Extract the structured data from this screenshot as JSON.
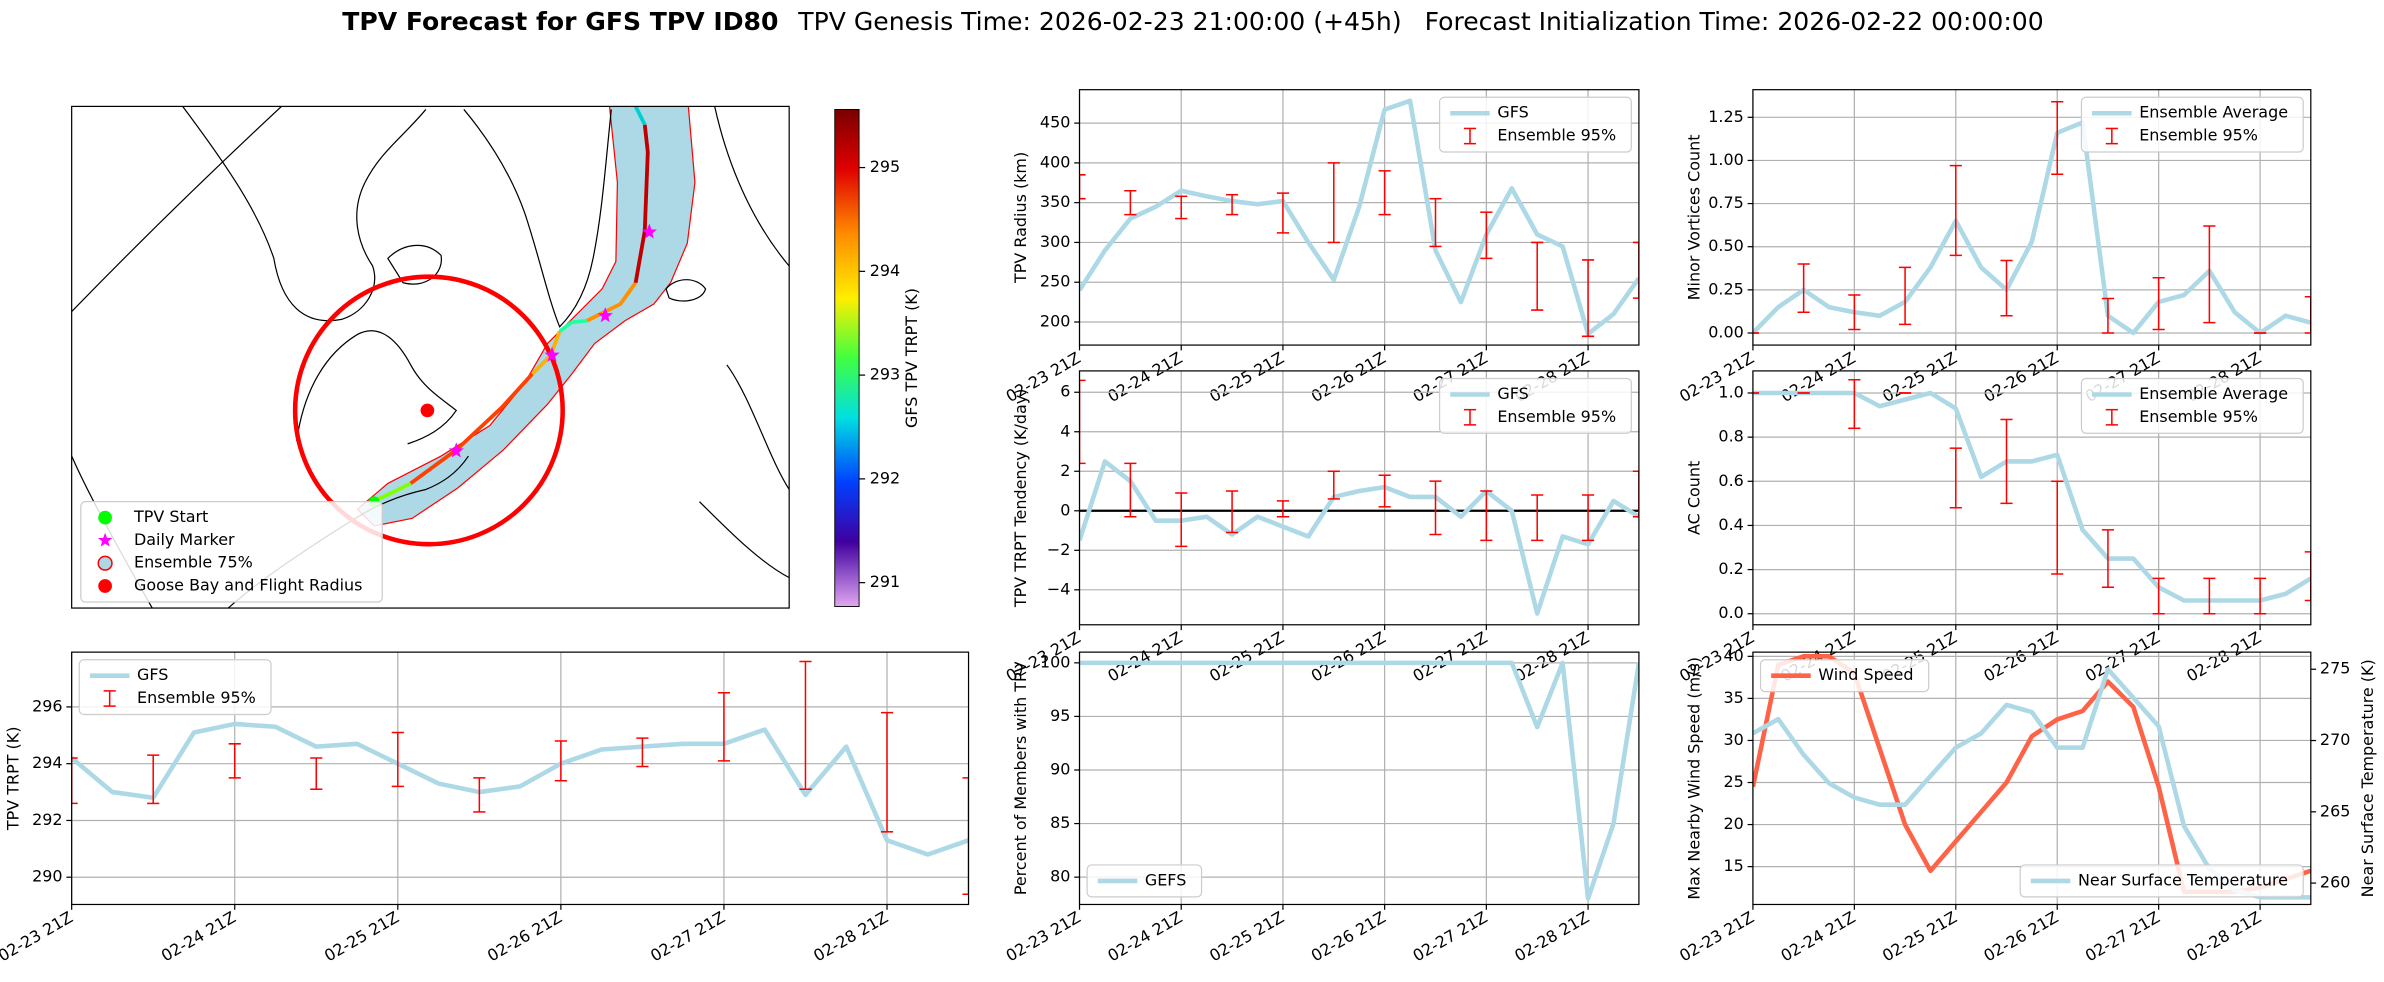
{
  "figure": {
    "title": "TPV Forecast for GFS TPV ID80",
    "genesis": "TPV Genesis Time: 2026-02-23 21:00:00 (+45h)",
    "initialization": "Forecast Initialization Time: 2026-02-22 00:00:00"
  },
  "chart_data": [
    {
      "type": "map",
      "legend": [
        {
          "label": "TPV Start",
          "color": "#00ff00",
          "marker": "circle"
        },
        {
          "label": "Daily Marker",
          "color": "#ff00ff",
          "marker": "star"
        },
        {
          "label": "Ensemble 75%",
          "color": "#add8e6",
          "edge": "#ff0000",
          "marker": "circle"
        },
        {
          "label": "Goose Bay and Flight Radius",
          "color": "#ff0000",
          "marker": "circle"
        }
      ],
      "legend_loc": "lower left",
      "colorbar": {
        "label": "GFS TPV TRPT (K)",
        "lim": [
          290.77,
          295.56
        ],
        "ticks": [
          291,
          292,
          293,
          294,
          295
        ]
      }
    },
    {
      "type": "line",
      "ylabel": "TPV Radius (km)",
      "categories": [
        "02-23 21Z",
        null,
        null,
        null,
        "02-24 21Z",
        null,
        null,
        null,
        "02-25 21Z",
        null,
        null,
        null,
        "02-26 21Z",
        null,
        null,
        null,
        "02-27 21Z",
        null,
        null,
        null,
        "02-28 21Z",
        null,
        null
      ],
      "ylim": [
        171,
        492
      ],
      "yticks": [
        200,
        250,
        300,
        350,
        400,
        450
      ],
      "grid": true,
      "legend": "upper right",
      "series": [
        {
          "name": "GFS",
          "color": "#add8e6",
          "values": [
            240,
            290,
            330,
            345,
            365,
            358,
            352,
            348,
            352,
            300,
            253,
            345,
            467,
            478,
            290,
            225,
            310,
            368,
            310,
            295,
            185,
            210,
            255
          ]
        }
      ],
      "errorbars": {
        "name": "Ensemble 95%",
        "color": "#ff0000",
        "low": [
          355,
          null,
          335,
          null,
          330,
          null,
          335,
          null,
          312,
          null,
          300,
          null,
          335,
          null,
          295,
          null,
          280,
          null,
          215,
          null,
          182,
          null,
          230
        ],
        "high": [
          385,
          null,
          365,
          null,
          358,
          null,
          360,
          null,
          362,
          null,
          400,
          null,
          390,
          null,
          355,
          null,
          338,
          null,
          300,
          null,
          278,
          null,
          300
        ]
      }
    },
    {
      "type": "line",
      "ylabel": "Minor Vortices Count",
      "categories": [
        "02-23 21Z",
        null,
        null,
        null,
        "02-24 21Z",
        null,
        null,
        null,
        "02-25 21Z",
        null,
        null,
        null,
        "02-26 21Z",
        null,
        null,
        null,
        "02-27 21Z",
        null,
        null,
        null,
        "02-28 21Z",
        null,
        null
      ],
      "ylim": [
        -0.07,
        1.41
      ],
      "yticks": [
        {
          "value": 0,
          "label": "0.00"
        },
        0.25,
        {
          "value": 0.5,
          "label": "0.50"
        },
        0.75,
        {
          "value": 1,
          "label": "1.00"
        },
        1.25
      ],
      "grid": true,
      "legend": "upper right",
      "series": [
        {
          "name": "Ensemble Average",
          "color": "#add8e6",
          "values": [
            0,
            0.15,
            0.25,
            0.15,
            0.12,
            0.1,
            0.18,
            0.38,
            0.65,
            0.38,
            0.25,
            0.53,
            1.16,
            1.22,
            0.1,
            0,
            0.18,
            0.22,
            0.36,
            0.12,
            0,
            0.1,
            0.06
          ]
        }
      ],
      "errorbars": {
        "name": "Ensemble 95%",
        "color": "#ff0000",
        "low": [
          0,
          null,
          0.12,
          null,
          0.02,
          null,
          0.05,
          null,
          0.45,
          null,
          0.1,
          null,
          0.92,
          null,
          0,
          null,
          0.02,
          null,
          0.06,
          null,
          0,
          null,
          0
        ],
        "high": [
          0,
          null,
          0.4,
          null,
          0.22,
          null,
          0.38,
          null,
          0.97,
          null,
          0.42,
          null,
          1.34,
          null,
          0.2,
          null,
          0.32,
          null,
          0.62,
          null,
          0,
          null,
          0.21
        ]
      }
    },
    {
      "type": "line",
      "ylabel": "TPV TRPT Tendency (K/day)",
      "categories": [
        "02-23 21Z",
        null,
        null,
        null,
        "02-24 21Z",
        null,
        null,
        null,
        "02-25 21Z",
        null,
        null,
        null,
        "02-26 21Z",
        null,
        null,
        null,
        "02-27 21Z",
        null,
        null,
        null,
        "02-28 21Z",
        null,
        null
      ],
      "ylim": [
        -5.77,
        7.08
      ],
      "yticks": [
        {
          "value": -4,
          "label": "−4"
        },
        {
          "value": -2,
          "label": "−2"
        },
        0,
        2,
        4,
        6
      ],
      "grid": true,
      "legend": "upper right",
      "hline": 0,
      "series": [
        {
          "name": "GFS",
          "color": "#add8e6",
          "values": [
            -1.5,
            2.5,
            1.5,
            -0.5,
            -0.5,
            -0.3,
            -1.2,
            -0.3,
            -0.8,
            -1.3,
            0.7,
            1.0,
            1.2,
            0.7,
            0.7,
            -0.3,
            1.0,
            0,
            -5.2,
            -1.3,
            -1.7,
            0.5,
            -0.3
          ]
        }
      ],
      "errorbars": {
        "name": "Ensemble 95%",
        "color": "#ff0000",
        "low": [
          2.4,
          null,
          -0.3,
          null,
          -1.8,
          null,
          -1.1,
          null,
          -0.3,
          null,
          0.6,
          null,
          0.2,
          null,
          -1.2,
          null,
          -1.5,
          null,
          -1.5,
          null,
          -1.5,
          null,
          -0.3
        ],
        "high": [
          6.6,
          null,
          2.4,
          null,
          0.9,
          null,
          1.0,
          null,
          0.5,
          null,
          2.0,
          null,
          1.8,
          null,
          1.5,
          null,
          1.0,
          null,
          0.8,
          null,
          0.8,
          null,
          2.0
        ]
      }
    },
    {
      "type": "line",
      "ylabel": "AC Count",
      "categories": [
        "02-23 21Z",
        null,
        null,
        null,
        "02-24 21Z",
        null,
        null,
        null,
        "02-25 21Z",
        null,
        null,
        null,
        "02-26 21Z",
        null,
        null,
        null,
        "02-27 21Z",
        null,
        null,
        null,
        "02-28 21Z",
        null,
        null
      ],
      "ylim": [
        -0.05,
        1.1
      ],
      "yticks": [
        {
          "value": 0,
          "label": "0.0"
        },
        0.2,
        0.4,
        0.6,
        0.8,
        {
          "value": 1,
          "label": "1.0"
        }
      ],
      "grid": true,
      "legend": "upper right",
      "series": [
        {
          "name": "Ensemble Average",
          "color": "#add8e6",
          "values": [
            1,
            1,
            1,
            1,
            1,
            0.94,
            0.97,
            1,
            0.93,
            0.62,
            0.69,
            0.69,
            0.72,
            0.38,
            0.25,
            0.25,
            0.12,
            0.06,
            0.06,
            0.06,
            0.06,
            0.09,
            0.16
          ]
        }
      ],
      "errorbars": {
        "name": "Ensemble 95%",
        "color": "#ff0000",
        "low": [
          1,
          null,
          1,
          null,
          0.84,
          null,
          1,
          null,
          0.48,
          null,
          0.5,
          null,
          0.18,
          null,
          0.12,
          null,
          0,
          null,
          0,
          null,
          0,
          null,
          0.06
        ],
        "high": [
          1,
          null,
          1,
          null,
          1.06,
          null,
          1,
          null,
          0.75,
          null,
          0.88,
          null,
          0.6,
          null,
          0.38,
          null,
          0.16,
          null,
          0.16,
          null,
          0.16,
          null,
          0.28
        ]
      }
    },
    {
      "type": "line",
      "ylabel": "TPV TRPT (K)",
      "categories": [
        "02-23 21Z",
        null,
        null,
        null,
        "02-24 21Z",
        null,
        null,
        null,
        "02-25 21Z",
        null,
        null,
        null,
        "02-26 21Z",
        null,
        null,
        null,
        "02-27 21Z",
        null,
        null,
        null,
        "02-28 21Z",
        null,
        null
      ],
      "ylim": [
        289.04,
        297.93
      ],
      "yticks": [
        290,
        292,
        294,
        296
      ],
      "grid": true,
      "legend": "upper left",
      "series": [
        {
          "name": "GFS",
          "color": "#add8e6",
          "values": [
            294.2,
            293.0,
            292.8,
            295.1,
            295.4,
            295.3,
            294.6,
            294.7,
            294.0,
            293.3,
            293.0,
            293.2,
            294.0,
            294.5,
            294.6,
            294.7,
            294.7,
            295.2,
            292.9,
            294.6,
            291.3,
            290.8,
            291.3
          ]
        }
      ],
      "errorbars": {
        "name": "Ensemble 95%",
        "color": "#ff0000",
        "low": [
          292.6,
          null,
          292.6,
          null,
          293.5,
          null,
          293.1,
          null,
          293.2,
          null,
          292.3,
          null,
          293.4,
          null,
          293.9,
          null,
          294.1,
          null,
          293.1,
          null,
          291.6,
          null,
          289.4
        ],
        "high": [
          294.2,
          null,
          294.3,
          null,
          294.7,
          null,
          294.2,
          null,
          295.1,
          null,
          293.5,
          null,
          294.8,
          null,
          294.9,
          null,
          296.5,
          null,
          297.6,
          null,
          295.8,
          null,
          293.5
        ]
      }
    },
    {
      "type": "line",
      "ylabel": "Percent of Members with TPV",
      "categories": [
        "02-23 21Z",
        null,
        null,
        null,
        "02-24 21Z",
        null,
        null,
        null,
        "02-25 21Z",
        null,
        null,
        null,
        "02-26 21Z",
        null,
        null,
        null,
        "02-27 21Z",
        null,
        null,
        null,
        "02-28 21Z",
        null,
        null
      ],
      "ylim": [
        77.45,
        101
      ],
      "yticks": [
        80,
        85,
        90,
        95,
        100
      ],
      "grid": true,
      "legend": "lower left",
      "series": [
        {
          "name": "GEFS",
          "color": "#add8e6",
          "values": [
            100,
            100,
            100,
            100,
            100,
            100,
            100,
            100,
            100,
            100,
            100,
            100,
            100,
            100,
            100,
            100,
            100,
            100,
            94,
            100,
            78,
            85,
            100
          ]
        }
      ]
    },
    {
      "type": "line",
      "ylabel": "Max Nearby Wind Speed (m/s)",
      "ylabel_color": "#ff6347",
      "y2label": "Near Surface Temperature (K)",
      "y2label_color": "#4169e1",
      "categories": [
        "02-23 21Z",
        null,
        null,
        null,
        "02-24 21Z",
        null,
        null,
        null,
        "02-25 21Z",
        null,
        null,
        null,
        "02-26 21Z",
        null,
        null,
        null,
        "02-27 21Z",
        null,
        null,
        null,
        "02-28 21Z",
        null,
        null
      ],
      "ylim": [
        10.5,
        40.5
      ],
      "yticks": [
        15,
        20,
        25,
        30,
        35,
        40
      ],
      "y2lim": [
        258.5,
        276.2
      ],
      "y2ticks": [
        260,
        265,
        270,
        275
      ],
      "grid": true,
      "legend": "upper left",
      "legend_y2": "lower right",
      "series": [
        {
          "name": "Wind Speed",
          "color": "#ff6347",
          "values": [
            24.5,
            39,
            40,
            40,
            38,
            29,
            20,
            14.5,
            18,
            21.5,
            25,
            30.5,
            32.5,
            33.5,
            37,
            34,
            24.5,
            12,
            12,
            12,
            12.5,
            13.5,
            14.5
          ]
        },
        {
          "name": "Near Surface Temperature",
          "color": "#add8e6",
          "axis": "y2",
          "values": [
            270.5,
            271.5,
            269,
            267,
            266,
            265.5,
            265.5,
            267.5,
            269.5,
            270.5,
            272.5,
            272,
            269.5,
            269.5,
            275,
            273,
            271,
            264,
            261,
            259.5,
            259,
            259,
            259
          ]
        }
      ]
    }
  ]
}
